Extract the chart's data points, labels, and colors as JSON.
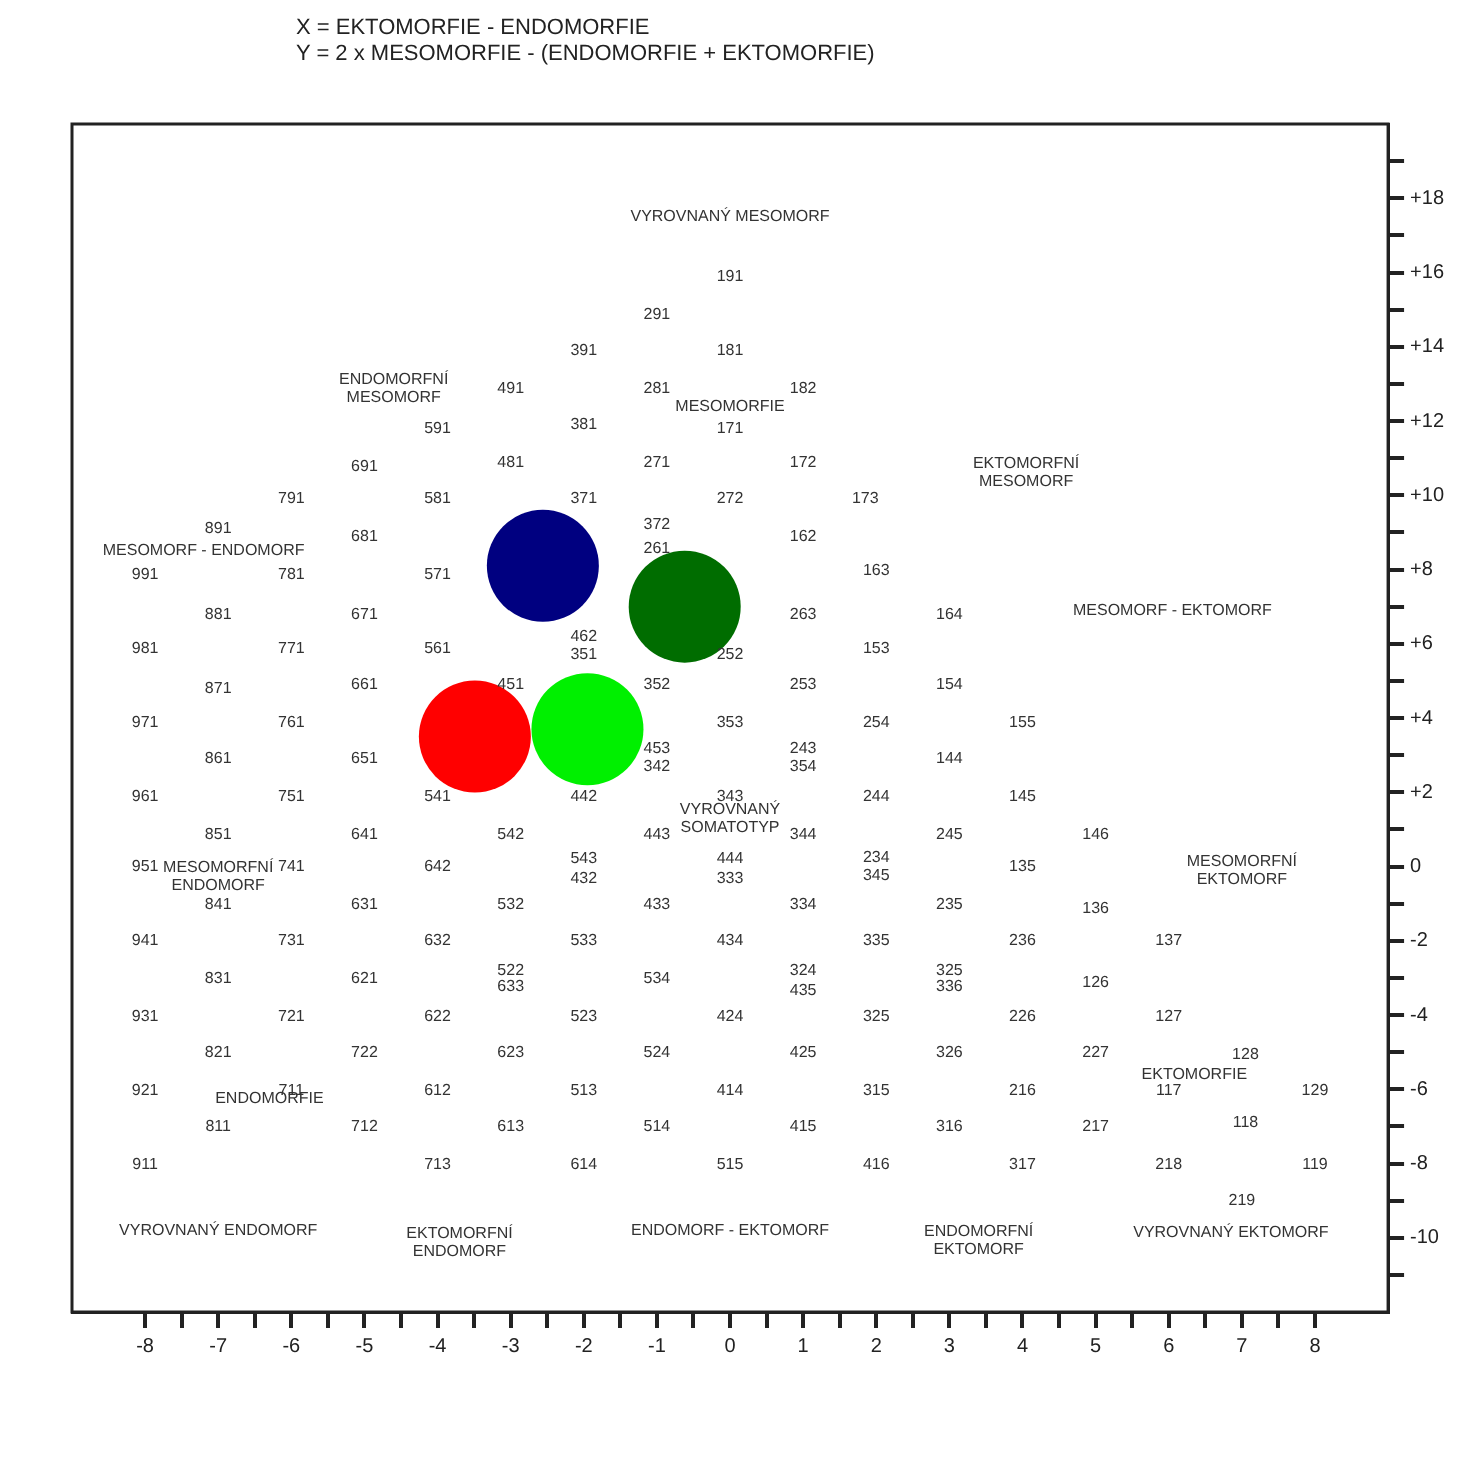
{
  "chart_data": {
    "type": "scatter",
    "title": "X = EKTOMORFIE - ENDOMORFIE",
    "subtitle": "Y = 2 x MESOMORFIE - (ENDOMORFIE + EKTOMORFIE)",
    "x": [
      -2.56,
      -0.62,
      -3.49,
      -1.95
    ],
    "values": [
      8.1,
      7.0,
      3.5,
      3.7
    ],
    "colors": [
      "#000080",
      "#006d00",
      "#ff0000",
      "#00f000"
    ],
    "marker": "circle",
    "grid": false,
    "tick_labels": "xy",
    "xlim": [
      -9,
      9
    ],
    "ylim": [
      -12,
      20
    ],
    "xticks": [
      -8,
      {
        "value": -7.5,
        "label": null
      },
      -7,
      {
        "value": -6.5,
        "label": null
      },
      -6,
      {
        "value": -5.5,
        "label": null
      },
      -5,
      {
        "value": -4.5,
        "label": null
      },
      -4,
      {
        "value": -3.5,
        "label": null
      },
      -3,
      {
        "value": -2.5,
        "label": null
      },
      -2,
      {
        "value": -1.5,
        "label": null
      },
      -1,
      {
        "value": -0.5,
        "label": null
      },
      0,
      {
        "value": 0.5,
        "label": null
      },
      1,
      {
        "value": 1.5,
        "label": null
      },
      2,
      {
        "value": 2.5,
        "label": null
      },
      3,
      {
        "value": 3.5,
        "label": null
      },
      4,
      {
        "value": 4.5,
        "label": null
      },
      5,
      {
        "value": 5.5,
        "label": null
      },
      6,
      {
        "value": 6.5,
        "label": null
      },
      7,
      {
        "value": 7.5,
        "label": null
      },
      8
    ],
    "yticks": [
      {
        "value": -11,
        "label": null
      },
      -10,
      {
        "value": -9,
        "label": null
      },
      -8,
      {
        "value": -7,
        "label": null
      },
      -6,
      {
        "value": -5,
        "label": null
      },
      -4,
      {
        "value": -3,
        "label": null
      },
      -2,
      {
        "value": -1,
        "label": null
      },
      0,
      {
        "value": 1,
        "label": null
      },
      {
        "value": 2,
        "label": "+2"
      },
      {
        "value": 3,
        "label": null
      },
      {
        "value": 4,
        "label": "+4"
      },
      {
        "value": 5,
        "label": null
      },
      {
        "value": 6,
        "label": "+6"
      },
      {
        "value": 7,
        "label": null
      },
      {
        "value": 8,
        "label": "+8"
      },
      {
        "value": 9,
        "label": null
      },
      {
        "value": 10,
        "label": "+10"
      },
      {
        "value": 11,
        "label": null
      },
      {
        "value": 12,
        "label": "+12"
      },
      {
        "value": 13,
        "label": null
      },
      {
        "value": 14,
        "label": "+14"
      },
      {
        "value": 15,
        "label": null
      },
      {
        "value": 16,
        "label": "+16"
      },
      {
        "value": 17,
        "label": null
      },
      {
        "value": 18,
        "label": "+18"
      },
      {
        "value": 19,
        "label": null
      }
    ],
    "annotations": [
      "VYROVNANÝ MESOMORF",
      "ENDOMORFNÍ\nMESOMORF",
      "EKTOMORFNÍ\nMESOMORF",
      "MESOMORFIE",
      "MESOMORF - ENDOMORF",
      "MESOMORF - EKTOMORF",
      "VYROVNANÝ\nSOMATOTYP",
      "MESOMORFNÍ\nENDOMORF",
      "MESOMORFNÍ\nEKTOMORF",
      "ENDOMORFIE",
      "EKTOMORFIE",
      "VYROVNANÝ ENDOMORF",
      "EKTOMORFNÍ\nENDOMORF",
      "ENDOMORF - EKTOMORF",
      "ENDOMORFNÍ\nEKTOMORF",
      "VYROVNANÝ EKTOMORF",
      "191",
      "291",
      "391",
      "181",
      "491",
      "281",
      "182",
      "171",
      "591",
      "381",
      "691",
      "481",
      "271",
      "172",
      "791",
      "581",
      "371",
      "272",
      "173",
      "891",
      "681",
      "372",
      "261",
      "162",
      "163",
      "991",
      "781",
      "571",
      "263",
      "164",
      "881",
      "671",
      "462",
      "351",
      "252",
      "153",
      "981",
      "771",
      "561",
      "871",
      "661",
      "451",
      "352",
      "253",
      "154",
      "155",
      "971",
      "761",
      "353",
      "254",
      "861",
      "651",
      "453",
      "342",
      "243",
      "354",
      "144",
      "145",
      "343",
      "961",
      "751",
      "541",
      "442",
      "244",
      "443",
      "344",
      "851",
      "641",
      "542",
      "245",
      "146",
      "951",
      "741",
      "642",
      "543",
      "432",
      "444",
      "333",
      "234\n345",
      "135",
      "841",
      "631",
      "532",
      "433",
      "334",
      "235",
      "136",
      "941",
      "731",
      "632",
      "533",
      "434",
      "335",
      "236",
      "137",
      "831",
      "621",
      "522",
      "633",
      "534",
      "324",
      "435",
      "325",
      "336",
      "126",
      "931",
      "721",
      "622",
      "523",
      "424",
      "325",
      "226",
      "127",
      "821",
      "722",
      "623",
      "524",
      "425",
      "326",
      "227",
      "128",
      "921",
      "711",
      "612",
      "513",
      "414",
      "315",
      "216",
      "117",
      "129",
      "811",
      "712",
      "613",
      "514",
      "415",
      "316",
      "217",
      "118",
      "911",
      "713",
      "614",
      "515",
      "416",
      "317",
      "218",
      "119",
      "219"
    ]
  }
}
